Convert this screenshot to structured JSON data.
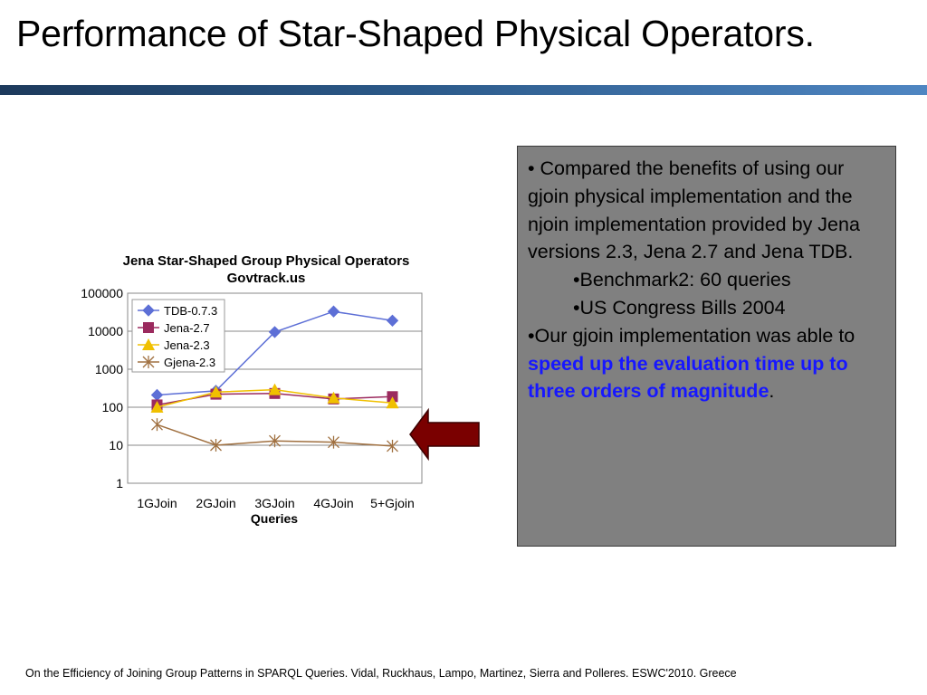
{
  "slide": {
    "title": "Performance of Star-Shaped Physical Operators."
  },
  "chart_data": {
    "type": "line",
    "title": "Jena Star-Shaped Group Physical Operators",
    "subtitle": "Govtrack.us",
    "xlabel": "Queries",
    "ylabel": "",
    "yscale": "log",
    "ylim": [
      1,
      100000
    ],
    "y_ticks": [
      1,
      10,
      100,
      1000,
      10000,
      100000
    ],
    "y_tick_labels": [
      "1",
      "10",
      "100",
      "1000",
      "10000",
      "100000"
    ],
    "categories": [
      "1GJoin",
      "2GJoin",
      "3GJoin",
      "4GJoin",
      "5+Gjoin"
    ],
    "grid": true,
    "legend": "top-left",
    "series": [
      {
        "name": "TDB-0.7.3",
        "values": [
          210,
          270,
          9500,
          33000,
          19000
        ],
        "color": "#5d6fd6",
        "marker": "diamond"
      },
      {
        "name": "Jena-2.7",
        "values": [
          115,
          220,
          230,
          165,
          190
        ],
        "color": "#9b2a5e",
        "marker": "square"
      },
      {
        "name": "Jena-2.3",
        "values": [
          100,
          250,
          290,
          175,
          130
        ],
        "color": "#f0c000",
        "marker": "triangle"
      },
      {
        "name": "Gjena-2.3",
        "values": [
          35,
          10,
          13,
          12,
          9.5
        ],
        "color": "#a07040",
        "marker": "asterisk"
      }
    ]
  },
  "info": {
    "bullet1": "• Compared the benefits of using our gjoin physical implementation and the njoin implementation provided by Jena versions 2.3, Jena 2.7 and Jena TDB.",
    "sub1": "•Benchmark2: 60 queries",
    "sub2": "•US Congress Bills 2004",
    "bullet2_prefix": "•Our gjoin implementation was able to ",
    "bullet2_highlight": "speed up the evaluation time up to three orders of magnitude",
    "bullet2_suffix": "."
  },
  "arrow": {
    "color": "#7a0000",
    "icon": "left-arrow-icon"
  },
  "footer": {
    "citation": "On the Efficiency of Joining Group Patterns in SPARQL Queries. Vidal, Ruckhaus, Lampo, Martinez, Sierra and Polleres. ESWC'2010. Greece"
  }
}
